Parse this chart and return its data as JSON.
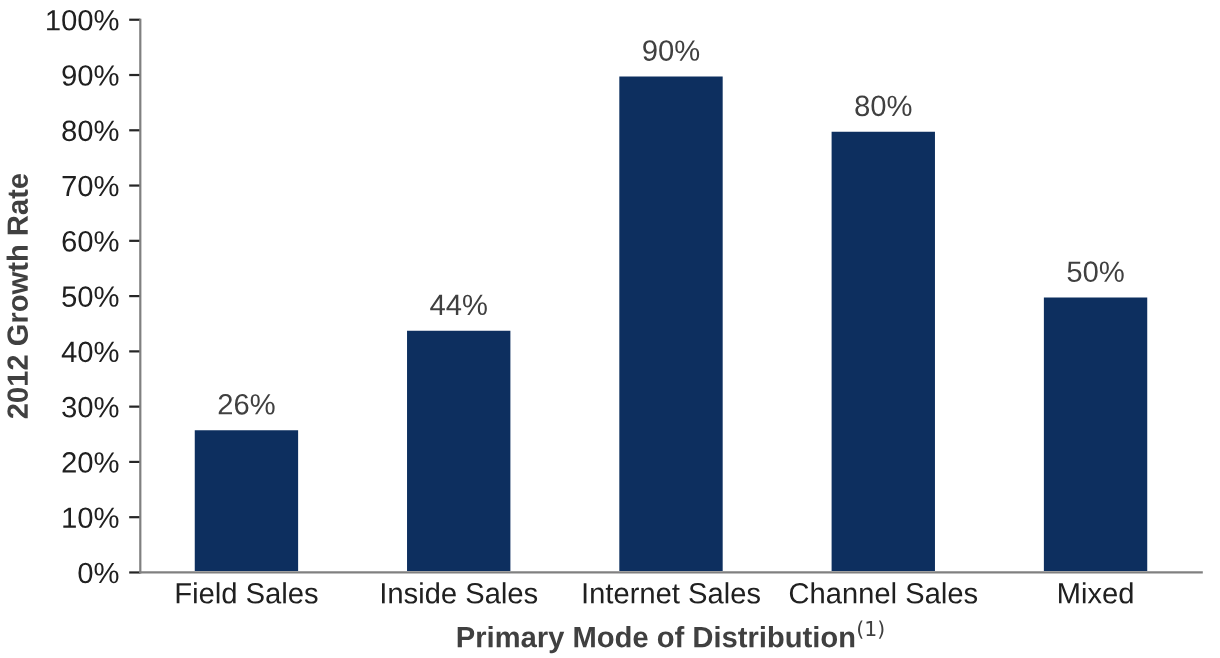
{
  "chart_data": {
    "type": "bar",
    "categories": [
      "Field Sales",
      "Inside Sales",
      "Internet Sales",
      "Channel Sales",
      "Mixed"
    ],
    "values": [
      26,
      44,
      90,
      80,
      50
    ],
    "value_labels": [
      "26%",
      "44%",
      "90%",
      "80%",
      "50%"
    ],
    "color": "#0d2f5f",
    "xlabel": "Primary Mode of Distribution$^{(1)}$",
    "ylabel": "2012 Growth Rate",
    "ylim": [
      0,
      100
    ],
    "yticks": [
      {
        "value": 0,
        "label": "0%"
      },
      {
        "value": 10,
        "label": "10%"
      },
      {
        "value": 20,
        "label": "20%"
      },
      {
        "value": 30,
        "label": "30%"
      },
      {
        "value": 40,
        "label": "40%"
      },
      {
        "value": 50,
        "label": "50%"
      },
      {
        "value": 60,
        "label": "60%"
      },
      {
        "value": 70,
        "label": "70%"
      },
      {
        "value": 80,
        "label": "80%"
      },
      {
        "value": 90,
        "label": "90%"
      },
      {
        "value": 100,
        "label": "100%"
      }
    ],
    "grid": false,
    "legend": false
  }
}
